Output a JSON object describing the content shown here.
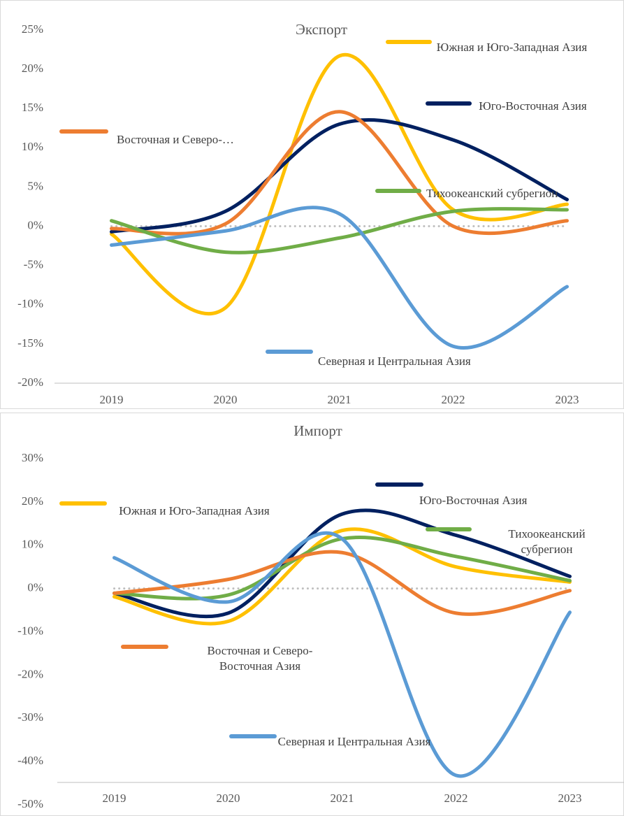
{
  "chart_data": [
    {
      "type": "line",
      "title": "Экспорт",
      "categories": [
        "2019",
        "2020",
        "2021",
        "2022",
        "2023"
      ],
      "ylim": [
        -20,
        25
      ],
      "yticks": [
        {
          "value": -20,
          "label": "-20%"
        },
        {
          "value": -15,
          "label": "-15%"
        },
        {
          "value": -10,
          "label": "-10%"
        },
        {
          "value": -5,
          "label": "-5%"
        },
        {
          "value": 0,
          "label": "0%"
        },
        {
          "value": 5,
          "label": "5%"
        },
        {
          "value": 10,
          "label": "10%"
        },
        {
          "value": 15,
          "label": "15%"
        },
        {
          "value": 20,
          "label": "20%"
        },
        {
          "value": 25,
          "label": "25%"
        }
      ],
      "series": [
        {
          "name": "Южная и Юго-Западная Азия",
          "color": "#FFC000",
          "values": [
            -1.0,
            -10.4,
            21.7,
            2.1,
            2.8
          ]
        },
        {
          "name": "Юго-Восточная Азия",
          "color": "#002060",
          "values": [
            -0.7,
            1.9,
            13.0,
            11.0,
            3.4
          ]
        },
        {
          "name": "Восточная и Северо-…",
          "color": "#ED7D31",
          "values": [
            -0.3,
            0.3,
            14.6,
            0.0,
            0.7
          ]
        },
        {
          "name": "Тихоокеанский субрегион",
          "color": "#70AD47",
          "values": [
            0.7,
            -3.3,
            -1.5,
            1.9,
            2.1
          ]
        },
        {
          "name": "Северная и Центральная Азия",
          "color": "#5B9BD5",
          "values": [
            -2.4,
            -0.6,
            1.6,
            -15.3,
            -7.7
          ]
        }
      ]
    },
    {
      "type": "line",
      "title": "Импорт",
      "categories": [
        "2019",
        "2020",
        "2021",
        "2022",
        "2023"
      ],
      "ylim": [
        -50,
        30
      ],
      "yticks": [
        {
          "value": -50,
          "label": "-50%"
        },
        {
          "value": -40,
          "label": "-40%"
        },
        {
          "value": -30,
          "label": "-30%"
        },
        {
          "value": -20,
          "label": "-20%"
        },
        {
          "value": -10,
          "label": "-10%"
        },
        {
          "value": 0,
          "label": "0%"
        },
        {
          "value": 10,
          "label": "10%"
        },
        {
          "value": 20,
          "label": "20%"
        },
        {
          "value": 30,
          "label": "30%"
        }
      ],
      "series": [
        {
          "name": "Юго-Восточная Азия",
          "color": "#002060",
          "values": [
            -1.1,
            -5.7,
            17.2,
            12.3,
            2.8
          ]
        },
        {
          "name": "Южная и Юго-Западная Азия",
          "color": "#FFC000",
          "values": [
            -1.9,
            -7.6,
            13.4,
            5.0,
            1.5
          ]
        },
        {
          "name": "Тихоокеанский субрегион",
          "color": "#70AD47",
          "values": [
            -1.1,
            -1.5,
            11.5,
            7.4,
            1.8
          ]
        },
        {
          "name": "Восточная и Северо-Восточная Азия",
          "color": "#ED7D31",
          "values": [
            -1.1,
            2.1,
            8.3,
            -5.7,
            -0.5
          ]
        },
        {
          "name": "Северная и Центральная Азия",
          "color": "#5B9BD5",
          "values": [
            7.1,
            -3.1,
            11.5,
            -43.2,
            -5.5
          ]
        }
      ]
    }
  ]
}
